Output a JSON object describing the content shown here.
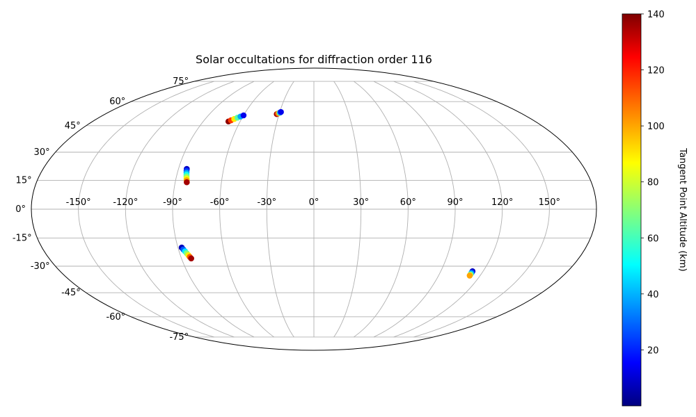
{
  "chart_data": {
    "type": "scatter",
    "projection": "mollweide",
    "title": "Solar occultations for diffraction order 116",
    "xlabel": "",
    "ylabel": "",
    "longitude_ticks": [
      "-150°",
      "-120°",
      "-90°",
      "-60°",
      "-30°",
      "0°",
      "30°",
      "60°",
      "90°",
      "120°",
      "150°"
    ],
    "latitude_ticks": [
      "75°",
      "60°",
      "45°",
      "30°",
      "15°",
      "0°",
      "-15°",
      "-30°",
      "-45°",
      "-60°",
      "-75°"
    ],
    "grid": true,
    "colormap": "jet",
    "colorbar": {
      "label": "Tangent Point Altitude (km)",
      "range": [
        0,
        140
      ],
      "ticks": [
        "20",
        "40",
        "60",
        "80",
        "100",
        "120",
        "140"
      ]
    },
    "series": [
      {
        "x": [
          -69.5,
          -68,
          -66,
          -64,
          -62,
          -60
        ],
        "y": [
          47.5,
          48.2,
          49.0,
          49.8,
          50.5,
          51.2
        ],
        "altitude": [
          138,
          115,
          90,
          65,
          40,
          15
        ]
      },
      {
        "x": [
          -32,
          -31,
          -30,
          -29.5,
          -29
        ],
        "y": [
          52.0,
          52.4,
          52.8,
          53.0,
          53.3
        ],
        "altitude": [
          135,
          105,
          70,
          40,
          15
        ]
      },
      {
        "x": [
          -84.5,
          -84.3,
          -84.0,
          -83.7,
          -83.4,
          -83.1,
          -82.8,
          -82.5
        ],
        "y": [
          21.0,
          20.0,
          19.0,
          18.0,
          17.0,
          16.0,
          15.0,
          14.0
        ],
        "altitude": [
          10,
          25,
          40,
          55,
          70,
          85,
          100,
          135
        ]
      },
      {
        "x": [
          -87.5,
          -86.8,
          -86.0,
          -85.3,
          -84.6,
          -84.0,
          -83.4
        ],
        "y": [
          -20.0,
          -21.0,
          -22.0,
          -23.0,
          -24.0,
          -25.0,
          -25.8
        ],
        "altitude": [
          8,
          30,
          50,
          70,
          90,
          110,
          135
        ]
      },
      {
        "x": [
          112.5,
          112.5,
          112.5,
          112.5,
          112.5
        ],
        "y": [
          -32.8,
          -33.4,
          -34.0,
          -34.6,
          -35.2
        ],
        "altitude": [
          8,
          25,
          45,
          75,
          100
        ]
      }
    ]
  },
  "colors": {
    "boundary": "#000000",
    "grid": "#b0b0b0"
  }
}
